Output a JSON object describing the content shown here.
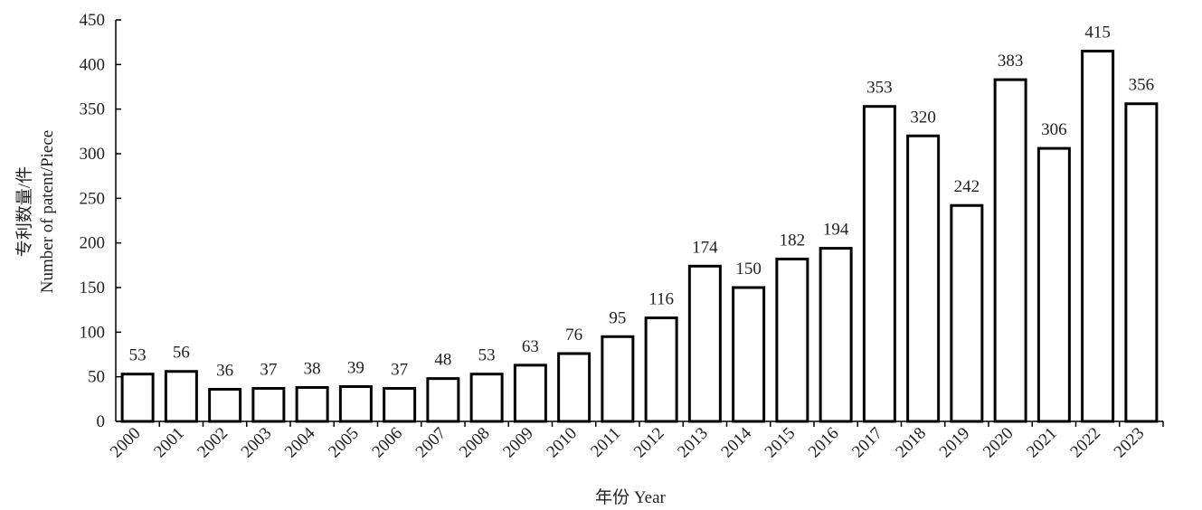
{
  "chart_data": {
    "type": "bar",
    "title": "",
    "xlabel": "年份 Year",
    "ylabel_cn": "专利数量/件",
    "ylabel_en": "Number of patent/Piece",
    "categories": [
      "2000",
      "2001",
      "2002",
      "2003",
      "2004",
      "2005",
      "2006",
      "2007",
      "2008",
      "2009",
      "2010",
      "2011",
      "2012",
      "2013",
      "2014",
      "2015",
      "2016",
      "2017",
      "2018",
      "2019",
      "2020",
      "2021",
      "2022",
      "2023"
    ],
    "values": [
      53,
      56,
      36,
      37,
      38,
      39,
      37,
      48,
      53,
      63,
      76,
      95,
      116,
      174,
      150,
      182,
      194,
      353,
      320,
      242,
      383,
      306,
      415,
      356
    ],
    "ylim": [
      0,
      450
    ],
    "yticks": [
      0,
      50,
      100,
      150,
      200,
      250,
      300,
      350,
      400,
      450
    ],
    "grid": false,
    "legend": "none",
    "colors": {
      "bar_fill": "#ffffff",
      "bar_stroke": "#000000",
      "axis": "#000000",
      "text": "#222222"
    }
  }
}
